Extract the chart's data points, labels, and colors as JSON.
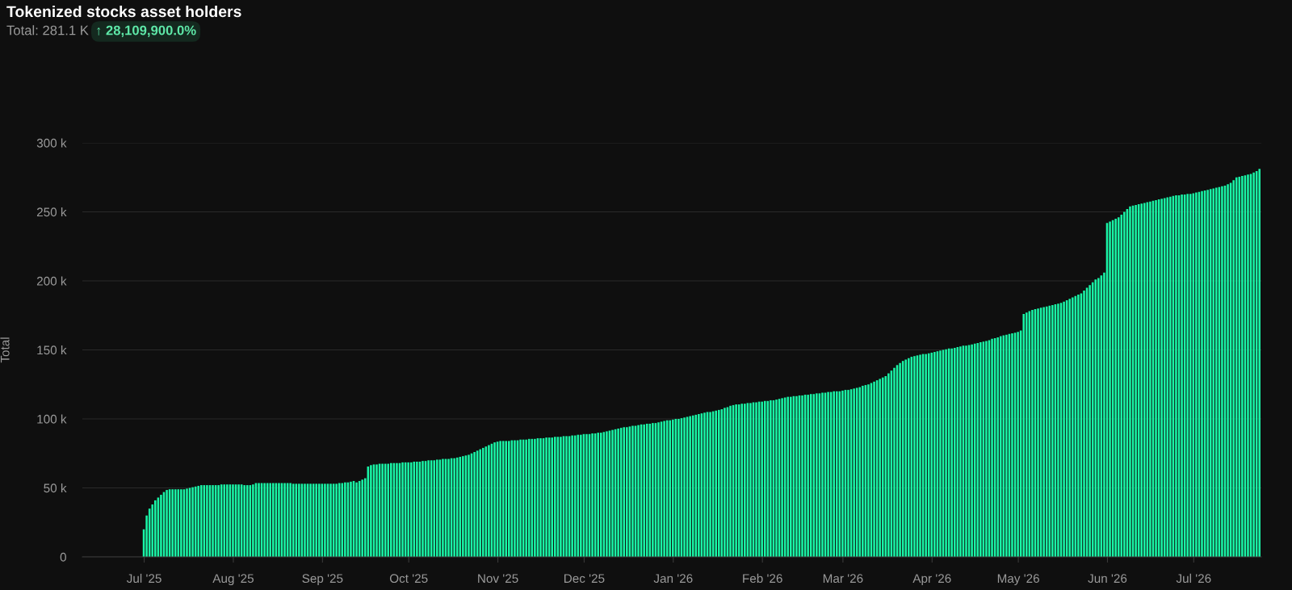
{
  "chart_data": {
    "type": "bar",
    "title": "Tokenized stocks asset holders",
    "subtitle": "Total: 281.1 K",
    "annotations": [
      "↑ 28,109,900.0%"
    ],
    "ylabel": "Total",
    "grid": "y",
    "color": "#19f5a6",
    "xlim": [
      "2025-06-10",
      "2026-07-25"
    ],
    "xticks": [
      {
        "value": "2025-07-01",
        "label": "Jul '25"
      },
      {
        "value": "2025-08-01",
        "label": "Aug '25"
      },
      {
        "value": "2025-09-01",
        "label": "Sep '25"
      },
      {
        "value": "2025-10-01",
        "label": "Oct '25"
      },
      {
        "value": "2025-11-01",
        "label": "Nov '25"
      },
      {
        "value": "2025-12-01",
        "label": "Dec '25"
      },
      {
        "value": "2026-01-01",
        "label": "Jan '26"
      },
      {
        "value": "2026-02-01",
        "label": "Feb '26"
      },
      {
        "value": "2026-03-01",
        "label": "Mar '26"
      },
      {
        "value": "2026-04-01",
        "label": "Apr '26"
      },
      {
        "value": "2026-05-01",
        "label": "May '26"
      },
      {
        "value": "2026-06-01",
        "label": "Jun '26"
      },
      {
        "value": "2026-07-01",
        "label": "Jul '26"
      }
    ],
    "ylim": [
      0,
      300
    ],
    "yticks": [
      {
        "value": 0,
        "label": "0"
      },
      {
        "value": 50,
        "label": "50 k"
      },
      {
        "value": 100,
        "label": "100 k"
      },
      {
        "value": 150,
        "label": "150 k"
      },
      {
        "value": 200,
        "label": "200 k"
      },
      {
        "value": 250,
        "label": "250 k"
      },
      {
        "value": 300,
        "label": "300 k"
      }
    ],
    "x": [
      "2025-07-01",
      "2025-07-02",
      "2025-07-03",
      "2025-07-04",
      "2025-07-05",
      "2025-07-06",
      "2025-07-07",
      "2025-07-08",
      "2025-07-09",
      "2025-07-10",
      "2025-07-11",
      "2025-07-12",
      "2025-07-13",
      "2025-07-14",
      "2025-07-15",
      "2025-07-16",
      "2025-07-17",
      "2025-07-18",
      "2025-07-19",
      "2025-07-20",
      "2025-07-21",
      "2025-07-22",
      "2025-07-23",
      "2025-07-24",
      "2025-07-25",
      "2025-07-26",
      "2025-07-27",
      "2025-07-28",
      "2025-07-29",
      "2025-07-30",
      "2025-07-31",
      "2025-08-01",
      "2025-08-02",
      "2025-08-03",
      "2025-08-04",
      "2025-08-05",
      "2025-08-06",
      "2025-08-07",
      "2025-08-08",
      "2025-08-09",
      "2025-08-10",
      "2025-08-11",
      "2025-08-12",
      "2025-08-13",
      "2025-08-14",
      "2025-08-15",
      "2025-08-16",
      "2025-08-17",
      "2025-08-18",
      "2025-08-19",
      "2025-08-20",
      "2025-08-21",
      "2025-08-22",
      "2025-08-23",
      "2025-08-24",
      "2025-08-25",
      "2025-08-26",
      "2025-08-27",
      "2025-08-28",
      "2025-08-29",
      "2025-08-30",
      "2025-08-31",
      "2025-09-01",
      "2025-09-02",
      "2025-09-03",
      "2025-09-04",
      "2025-09-05",
      "2025-09-06",
      "2025-09-07",
      "2025-09-08",
      "2025-09-09",
      "2025-09-10",
      "2025-09-11",
      "2025-09-12",
      "2025-09-13",
      "2025-09-14",
      "2025-09-15",
      "2025-09-16",
      "2025-09-17",
      "2025-09-18",
      "2025-09-19",
      "2025-09-20",
      "2025-09-21",
      "2025-09-22",
      "2025-09-23",
      "2025-09-24",
      "2025-09-25",
      "2025-09-26",
      "2025-09-27",
      "2025-09-28",
      "2025-09-29",
      "2025-09-30",
      "2025-10-01",
      "2025-10-02",
      "2025-10-03",
      "2025-10-04",
      "2025-10-05",
      "2025-10-06",
      "2025-10-07",
      "2025-10-08",
      "2025-10-09",
      "2025-10-10",
      "2025-10-11",
      "2025-10-12",
      "2025-10-13",
      "2025-10-14",
      "2025-10-15",
      "2025-10-16",
      "2025-10-17",
      "2025-10-18",
      "2025-10-19",
      "2025-10-20",
      "2025-10-21",
      "2025-10-22",
      "2025-10-23",
      "2025-10-24",
      "2025-10-25",
      "2025-10-26",
      "2025-10-27",
      "2025-10-28",
      "2025-10-29",
      "2025-10-30",
      "2025-10-31",
      "2025-11-01",
      "2025-11-02",
      "2025-11-03",
      "2025-11-04",
      "2025-11-05",
      "2025-11-06",
      "2025-11-07",
      "2025-11-08",
      "2025-11-09",
      "2025-11-10",
      "2025-11-11",
      "2025-11-12",
      "2025-11-13",
      "2025-11-14",
      "2025-11-15",
      "2025-11-16",
      "2025-11-17",
      "2025-11-18",
      "2025-11-19",
      "2025-11-20",
      "2025-11-21",
      "2025-11-22",
      "2025-11-23",
      "2025-11-24",
      "2025-11-25",
      "2025-11-26",
      "2025-11-27",
      "2025-11-28",
      "2025-11-29",
      "2025-11-30",
      "2025-12-01",
      "2025-12-02",
      "2025-12-03",
      "2025-12-04",
      "2025-12-05",
      "2025-12-06",
      "2025-12-07",
      "2025-12-08",
      "2025-12-09",
      "2025-12-10",
      "2025-12-11",
      "2025-12-12",
      "2025-12-13",
      "2025-12-14",
      "2025-12-15",
      "2025-12-16",
      "2025-12-17",
      "2025-12-18",
      "2025-12-19",
      "2025-12-20",
      "2025-12-21",
      "2025-12-22",
      "2025-12-23",
      "2025-12-24",
      "2025-12-25",
      "2025-12-26",
      "2025-12-27",
      "2025-12-28",
      "2025-12-29",
      "2025-12-30",
      "2025-12-31",
      "2026-01-01",
      "2026-01-02",
      "2026-01-03",
      "2026-01-04",
      "2026-01-05",
      "2026-01-06",
      "2026-01-07",
      "2026-01-08",
      "2026-01-09",
      "2026-01-10",
      "2026-01-11",
      "2026-01-12",
      "2026-01-13",
      "2026-01-14",
      "2026-01-15",
      "2026-01-16",
      "2026-01-17",
      "2026-01-18",
      "2026-01-19",
      "2026-01-20",
      "2026-01-21",
      "2026-01-22",
      "2026-01-23",
      "2026-01-24",
      "2026-01-25",
      "2026-01-26",
      "2026-01-27",
      "2026-01-28",
      "2026-01-29",
      "2026-01-30",
      "2026-01-31",
      "2026-02-01",
      "2026-02-02",
      "2026-02-03",
      "2026-02-04",
      "2026-02-05",
      "2026-02-06",
      "2026-02-07",
      "2026-02-08",
      "2026-02-09",
      "2026-02-10",
      "2026-02-11",
      "2026-02-12",
      "2026-02-13",
      "2026-02-14",
      "2026-02-15",
      "2026-02-16",
      "2026-02-17",
      "2026-02-18",
      "2026-02-19",
      "2026-02-20",
      "2026-02-21",
      "2026-02-22",
      "2026-02-23",
      "2026-02-24",
      "2026-02-25",
      "2026-02-26",
      "2026-02-27",
      "2026-02-28",
      "2026-03-01",
      "2026-03-02",
      "2026-03-03",
      "2026-03-04",
      "2026-03-05",
      "2026-03-06",
      "2026-03-07",
      "2026-03-08",
      "2026-03-09",
      "2026-03-10",
      "2026-03-11",
      "2026-03-12",
      "2026-03-13",
      "2026-03-14",
      "2026-03-15",
      "2026-03-16",
      "2026-03-17",
      "2026-03-18",
      "2026-03-19",
      "2026-03-20",
      "2026-03-21",
      "2026-03-22",
      "2026-03-23",
      "2026-03-24",
      "2026-03-25",
      "2026-03-26",
      "2026-03-27",
      "2026-03-28",
      "2026-03-29",
      "2026-03-30",
      "2026-03-31",
      "2026-04-01",
      "2026-04-02",
      "2026-04-03",
      "2026-04-04",
      "2026-04-05",
      "2026-04-06",
      "2026-04-07",
      "2026-04-08",
      "2026-04-09",
      "2026-04-10",
      "2026-04-11",
      "2026-04-12",
      "2026-04-13",
      "2026-04-14",
      "2026-04-15",
      "2026-04-16",
      "2026-04-17",
      "2026-04-18",
      "2026-04-19",
      "2026-04-20",
      "2026-04-21",
      "2026-04-22",
      "2026-04-23",
      "2026-04-24",
      "2026-04-25",
      "2026-04-26",
      "2026-04-27",
      "2026-04-28",
      "2026-04-29",
      "2026-04-30",
      "2026-05-01",
      "2026-05-02",
      "2026-05-03",
      "2026-05-04",
      "2026-05-05",
      "2026-05-06",
      "2026-05-07",
      "2026-05-08",
      "2026-05-09",
      "2026-05-10",
      "2026-05-11",
      "2026-05-12",
      "2026-05-13",
      "2026-05-14",
      "2026-05-15",
      "2026-05-16",
      "2026-05-17",
      "2026-05-18",
      "2026-05-19",
      "2026-05-20",
      "2026-05-21",
      "2026-05-22",
      "2026-05-23",
      "2026-05-24",
      "2026-05-25",
      "2026-05-26",
      "2026-05-27",
      "2026-05-28",
      "2026-05-29",
      "2026-05-30",
      "2026-05-31",
      "2026-06-01",
      "2026-06-02",
      "2026-06-03",
      "2026-06-04",
      "2026-06-05",
      "2026-06-06",
      "2026-06-07",
      "2026-06-08",
      "2026-06-09",
      "2026-06-10",
      "2026-06-11",
      "2026-06-12",
      "2026-06-13",
      "2026-06-14",
      "2026-06-15",
      "2026-06-16",
      "2026-06-17",
      "2026-06-18",
      "2026-06-19",
      "2026-06-20",
      "2026-06-21",
      "2026-06-22",
      "2026-06-23",
      "2026-06-24",
      "2026-06-25",
      "2026-06-26",
      "2026-06-27",
      "2026-06-28",
      "2026-06-29",
      "2026-06-30",
      "2026-07-01",
      "2026-07-02",
      "2026-07-03",
      "2026-07-04",
      "2026-07-05",
      "2026-07-06",
      "2026-07-07",
      "2026-07-08",
      "2026-07-09",
      "2026-07-10",
      "2026-07-11",
      "2026-07-12",
      "2026-07-13",
      "2026-07-14",
      "2026-07-15",
      "2026-07-16",
      "2026-07-17",
      "2026-07-18",
      "2026-07-19",
      "2026-07-20",
      "2026-07-21",
      "2026-07-22",
      "2026-07-23",
      "2026-07-24"
    ],
    "values": [
      20,
      30,
      35,
      38,
      41,
      43,
      45,
      47,
      48.5,
      49,
      49,
      49,
      49,
      49,
      49,
      49.5,
      50,
      50.5,
      51,
      51.5,
      52,
      52,
      52,
      52,
      52,
      52,
      52,
      52.5,
      52.5,
      52.5,
      52.5,
      52.5,
      52.5,
      52.5,
      52.5,
      52,
      52,
      52,
      52.5,
      53.5,
      53.5,
      53.5,
      53.5,
      53.5,
      53.5,
      53.5,
      53.5,
      53.5,
      53.5,
      53.5,
      53.5,
      53.5,
      53,
      53,
      53,
      53,
      53,
      53,
      53,
      53,
      53,
      53,
      53,
      53,
      53,
      53,
      53,
      53,
      53.5,
      53.5,
      54,
      54,
      54.5,
      55,
      54,
      55,
      56,
      57,
      65.5,
      66.5,
      67,
      67,
      67.5,
      67.5,
      67.5,
      67.5,
      68,
      68,
      68,
      68,
      68.5,
      68.5,
      68.5,
      68.5,
      69,
      69,
      69,
      69.5,
      69.5,
      70,
      70,
      70,
      70.5,
      70.5,
      71,
      71,
      71,
      71.5,
      71.5,
      72,
      72.5,
      73,
      73.5,
      74,
      75,
      76,
      77,
      78,
      79,
      80,
      81,
      82,
      83,
      83.5,
      84,
      84,
      84,
      84,
      84.5,
      84.5,
      84.5,
      85,
      85,
      85,
      85.5,
      85.5,
      85.5,
      86,
      86,
      86,
      86.5,
      86.5,
      86.5,
      87,
      87,
      87,
      87.5,
      87.5,
      87.5,
      88,
      88,
      88.5,
      88.5,
      89,
      89,
      89,
      89.5,
      89.5,
      90,
      90,
      90.5,
      91,
      91.5,
      92,
      92.5,
      93,
      93.5,
      94,
      94,
      94.5,
      95,
      95,
      95.5,
      96,
      96,
      96.5,
      96.5,
      97,
      97,
      97.5,
      98,
      98.5,
      99,
      99,
      99.5,
      100,
      100,
      100.5,
      101,
      101.5,
      102,
      102.5,
      103,
      103.5,
      104,
      104.5,
      105,
      105,
      105.5,
      106,
      106.5,
      107,
      108,
      108.5,
      109.5,
      110,
      110.5,
      110.5,
      111,
      111,
      111.5,
      111.5,
      112,
      112,
      112.5,
      112.5,
      113,
      113,
      113.5,
      113.5,
      114,
      114.5,
      115,
      115.5,
      116,
      116,
      116.5,
      116.5,
      117,
      117,
      117.5,
      117.5,
      118,
      118,
      118.5,
      118.5,
      119,
      119,
      119.5,
      119.5,
      120,
      120,
      120,
      120.5,
      121,
      121,
      121.5,
      122,
      122.5,
      123,
      124,
      124.5,
      125,
      126,
      127,
      128,
      129,
      130,
      131,
      133,
      135,
      137,
      139,
      140.5,
      142,
      143,
      144,
      145,
      145.5,
      146,
      146.5,
      147,
      147,
      147.5,
      148,
      148.5,
      149,
      149.5,
      150,
      150.5,
      151,
      151,
      151.5,
      152,
      152.5,
      153,
      153,
      153.5,
      154,
      154.5,
      155,
      155.5,
      156,
      156.5,
      157,
      158,
      158.5,
      159,
      160,
      160.5,
      161,
      161.5,
      162,
      162.5,
      163,
      164,
      176,
      177,
      178,
      179,
      179.5,
      180,
      180.5,
      181,
      181.5,
      182,
      182.5,
      183,
      183.5,
      184,
      185,
      186,
      187,
      188,
      189,
      190,
      191,
      193,
      195,
      197,
      199,
      201,
      202,
      204,
      206,
      242,
      243,
      244,
      245,
      246,
      248,
      250,
      252,
      254,
      254.5,
      255,
      255.5,
      256,
      256.5,
      257,
      257.5,
      258,
      258.5,
      259,
      259.5,
      260,
      260.5,
      261,
      261.5,
      262,
      262,
      262.5,
      262.5,
      263,
      263,
      263.5,
      264,
      264.5,
      265,
      265.5,
      266,
      266.5,
      267,
      267.5,
      268,
      268.5,
      269,
      270,
      271,
      273,
      275,
      275.5,
      276,
      276.5,
      277,
      277.5,
      278.5,
      279.5,
      281.1
    ]
  }
}
